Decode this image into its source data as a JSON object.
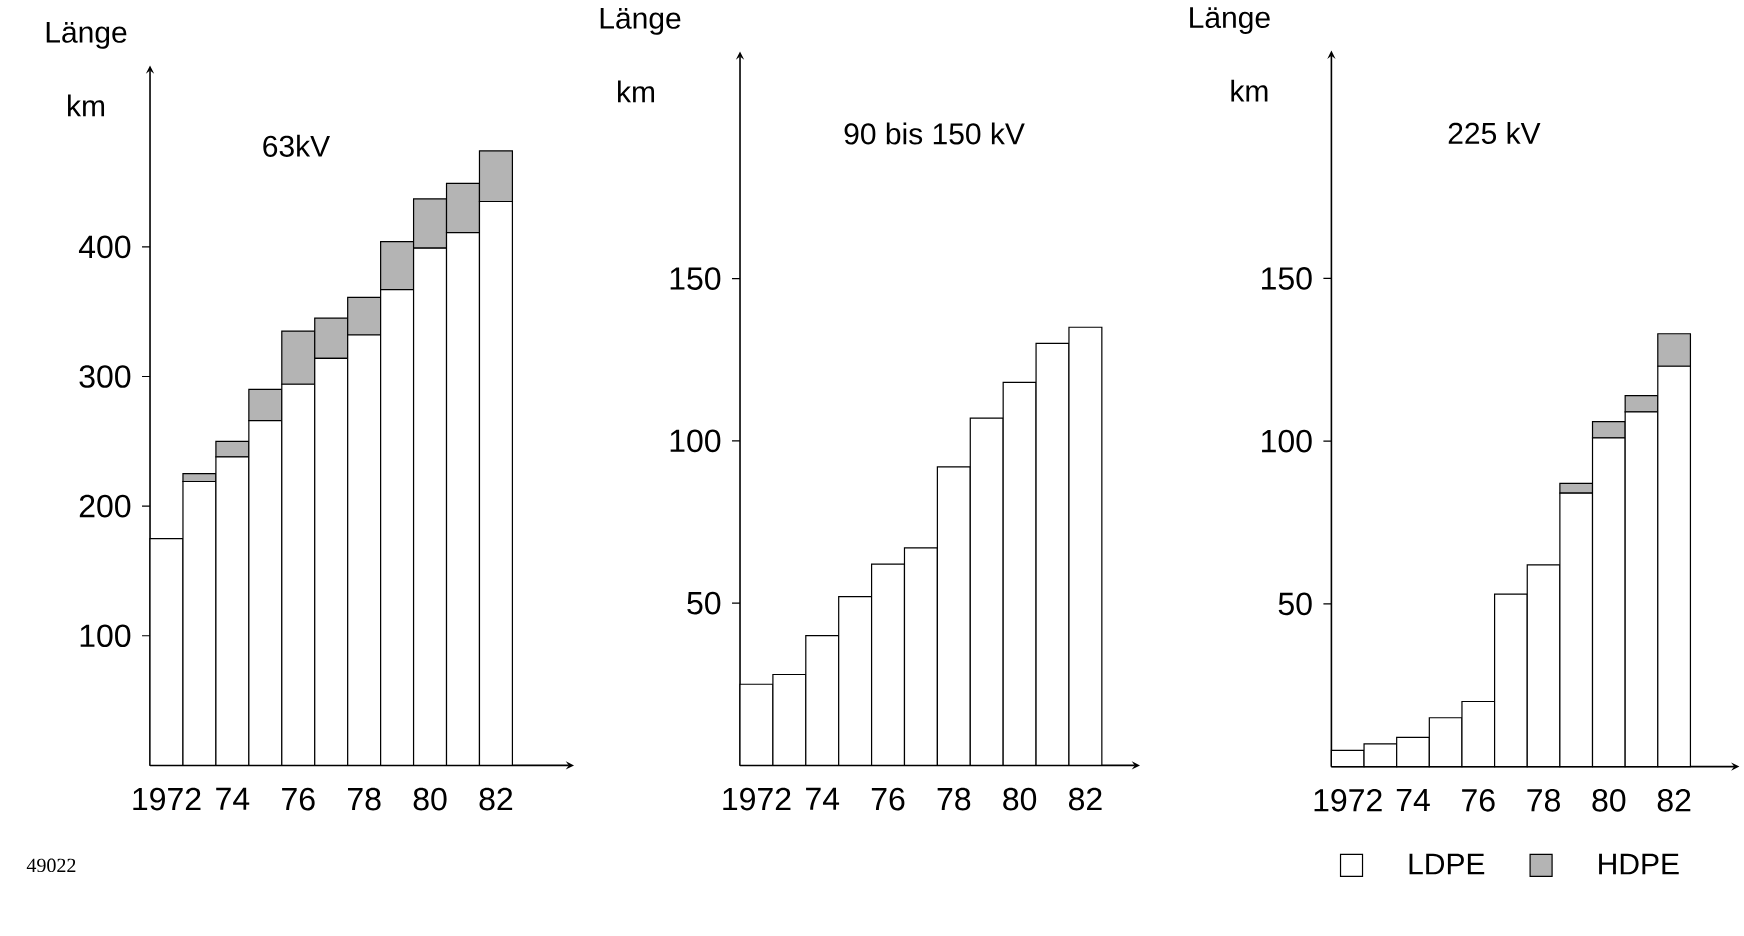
{
  "chart_data": [
    {
      "type": "bar",
      "title": "63kV",
      "ylabel": "Länge",
      "annotations": [
        "km",
        "49022"
      ],
      "stacked": true,
      "categories": [
        "1972",
        null,
        "74",
        null,
        "76",
        null,
        "78",
        null,
        "80",
        null,
        "82"
      ],
      "series": [
        {
          "color": "#ffffff",
          "values": [
            175,
            219,
            238,
            266,
            294,
            314,
            332,
            367,
            399,
            411,
            435
          ]
        },
        {
          "color": "#b4b4b4",
          "values": [
            0,
            6,
            12,
            24,
            41,
            31,
            29,
            37,
            38,
            38,
            39
          ]
        }
      ],
      "ylim": [
        0,
        540
      ],
      "yticks": [
        100,
        200,
        300,
        400
      ]
    },
    {
      "type": "bar",
      "title": "90 bis 150 kV",
      "ylabel": "Länge",
      "annotations": [
        "km"
      ],
      "categories": [
        "1972",
        null,
        "74",
        null,
        "76",
        null,
        "78",
        null,
        "80",
        null,
        "82"
      ],
      "series": [
        {
          "color": "#ffffff",
          "values": [
            25,
            28,
            40,
            52,
            62,
            67,
            92,
            107,
            118,
            130,
            135
          ]
        }
      ],
      "ylim": [
        0,
        220
      ],
      "yticks": [
        50,
        100,
        150
      ]
    },
    {
      "type": "bar",
      "title": "225 kV",
      "ylabel": "Länge",
      "annotations": [
        "km"
      ],
      "stacked": true,
      "legend": "bottom right",
      "categories": [
        "1972",
        null,
        "74",
        null,
        "76",
        null,
        "78",
        null,
        "80",
        null,
        "82"
      ],
      "series": [
        {
          "name": "LDPE",
          "color": "#ffffff",
          "values": [
            5,
            7,
            9,
            15,
            20,
            53,
            62,
            84,
            101,
            109,
            123
          ]
        },
        {
          "name": "HDPE",
          "color": "#b4b4b4",
          "values": [
            0,
            0,
            0,
            0,
            0,
            0,
            0,
            3,
            5,
            5,
            10
          ]
        }
      ],
      "ylim": [
        0,
        220
      ],
      "yticks": [
        50,
        100,
        150
      ]
    }
  ]
}
